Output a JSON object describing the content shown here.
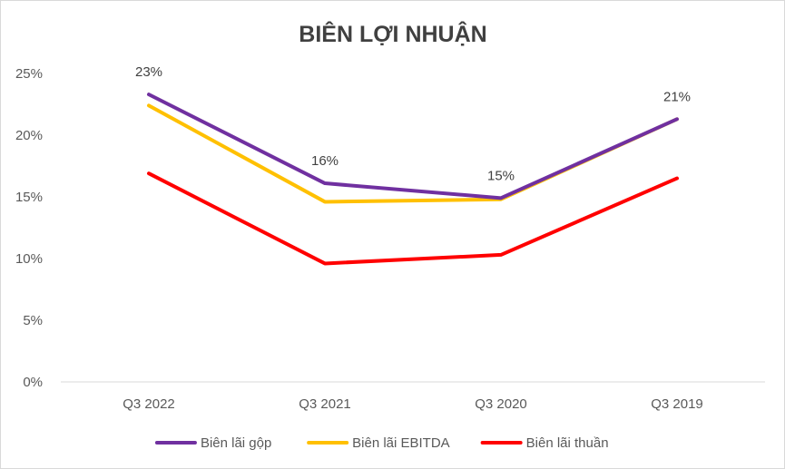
{
  "chart_data": {
    "type": "line",
    "title": "BIÊN LỢI NHUẬN",
    "categories": [
      "Q3 2022",
      "Q3 2021",
      "Q3 2020",
      "Q3 2019"
    ],
    "ylim": [
      0,
      25
    ],
    "yticks": [
      0,
      5,
      10,
      15,
      20,
      25
    ],
    "ytick_labels": [
      "0%",
      "5%",
      "10%",
      "15%",
      "20%",
      "25%"
    ],
    "grid": false,
    "legend_position": "bottom",
    "series": [
      {
        "name": "Biên lãi gộp",
        "color": "#7030A0",
        "values": [
          23.3,
          16.1,
          14.9,
          21.3
        ],
        "data_labels": [
          "23%",
          "16%",
          "15%",
          "21%"
        ]
      },
      {
        "name": "Biên lãi EBITDA",
        "color": "#FFC000",
        "values": [
          22.4,
          14.6,
          14.8,
          21.3
        ],
        "data_labels": []
      },
      {
        "name": "Biên lãi thuần",
        "color": "#FF0000",
        "values": [
          16.9,
          9.6,
          10.3,
          16.5
        ],
        "data_labels": []
      }
    ]
  }
}
